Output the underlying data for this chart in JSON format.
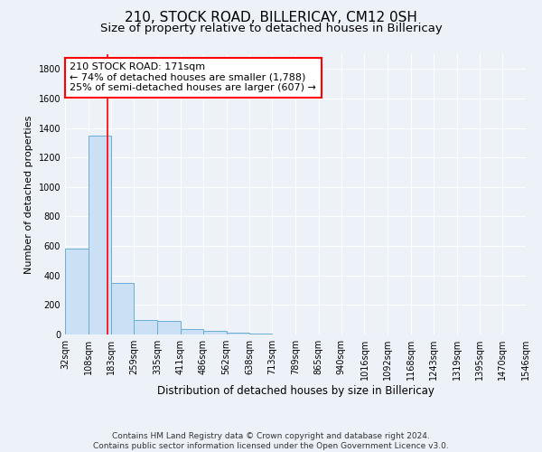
{
  "title1": "210, STOCK ROAD, BILLERICAY, CM12 0SH",
  "title2": "Size of property relative to detached houses in Billericay",
  "xlabel": "Distribution of detached houses by size in Billericay",
  "ylabel": "Number of detached properties",
  "bin_edges": [
    32,
    108,
    183,
    259,
    335,
    411,
    486,
    562,
    638,
    713,
    789,
    865,
    940,
    1016,
    1092,
    1168,
    1243,
    1319,
    1395,
    1470,
    1546
  ],
  "bar_heights": [
    580,
    1350,
    350,
    100,
    90,
    35,
    25,
    15,
    5,
    3,
    2,
    1,
    1,
    1,
    1,
    1,
    0,
    0,
    0,
    0
  ],
  "bar_color": "#cce0f5",
  "bar_edge_color": "#6aaed6",
  "red_line_x": 171,
  "annotation_line1": "210 STOCK ROAD: 171sqm",
  "annotation_line2": "← 74% of detached houses are smaller (1,788)",
  "annotation_line3": "25% of semi-detached houses are larger (607) →",
  "annotation_box_color": "white",
  "annotation_box_edge": "red",
  "ylim": [
    0,
    1900
  ],
  "yticks": [
    0,
    200,
    400,
    600,
    800,
    1000,
    1200,
    1400,
    1600,
    1800
  ],
  "footnote": "Contains HM Land Registry data © Crown copyright and database right 2024.\nContains public sector information licensed under the Open Government Licence v3.0.",
  "bg_color": "#edf2f9",
  "plot_bg_color": "#edf2f9",
  "title1_fontsize": 11,
  "title2_fontsize": 9.5,
  "xlabel_fontsize": 8.5,
  "ylabel_fontsize": 8,
  "tick_fontsize": 7,
  "annotation_fontsize": 8
}
